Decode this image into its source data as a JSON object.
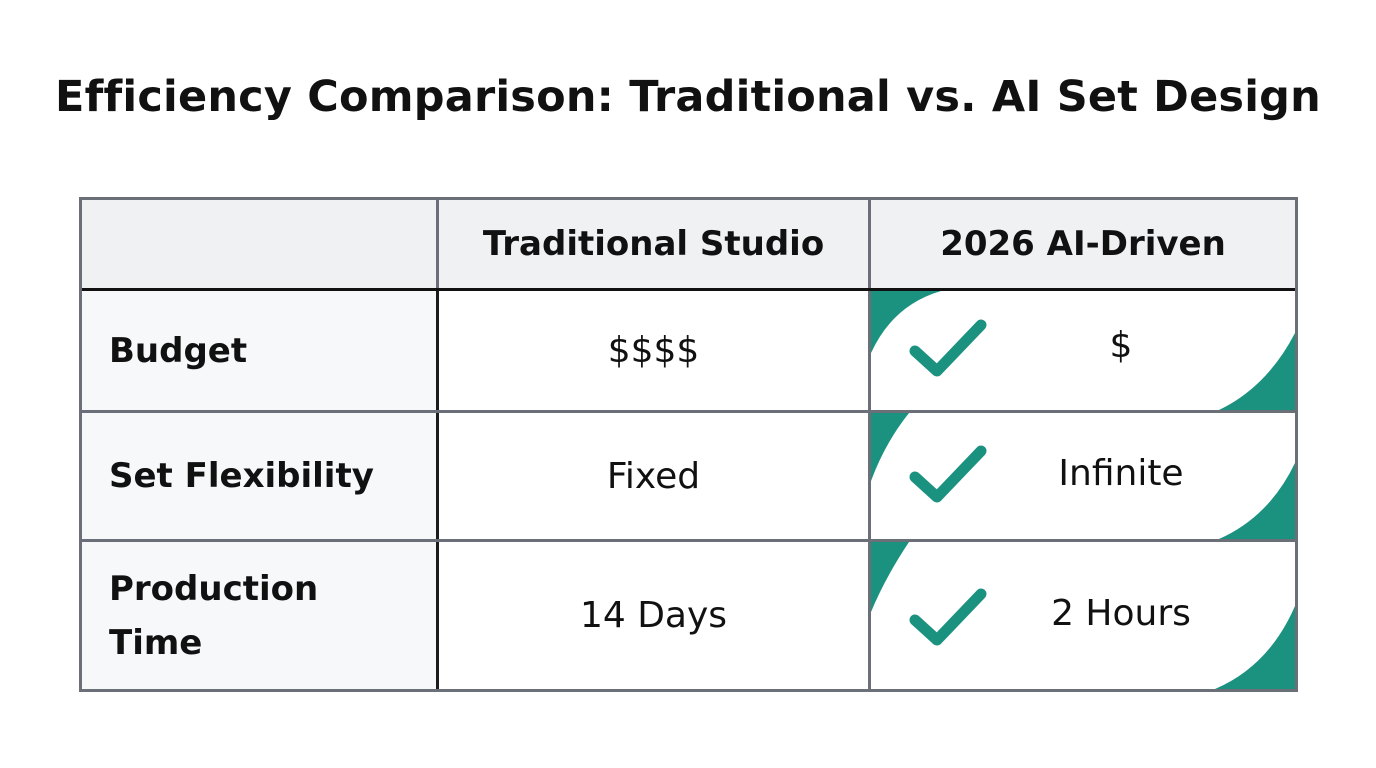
{
  "title": "Efficiency Comparison: Traditional vs. AI Set Design",
  "columns": {
    "corner": "",
    "traditional": "Traditional Studio",
    "ai": "2026 AI-Driven"
  },
  "rows": [
    {
      "label": "Budget",
      "traditional": "$$$$",
      "ai": "$"
    },
    {
      "label": "Set Flexibility",
      "traditional": "Fixed",
      "ai": "Infinite"
    },
    {
      "label": "Production Time",
      "traditional": "14 Days",
      "ai": "2 Hours"
    }
  ],
  "colors": {
    "accent": "#1b9180",
    "grid": "#6b6f78",
    "header_bg": "#f0f1f3"
  },
  "icons": {
    "ai_check": "checkmark-icon",
    "ai_corner": "teal-corner-decoration"
  }
}
